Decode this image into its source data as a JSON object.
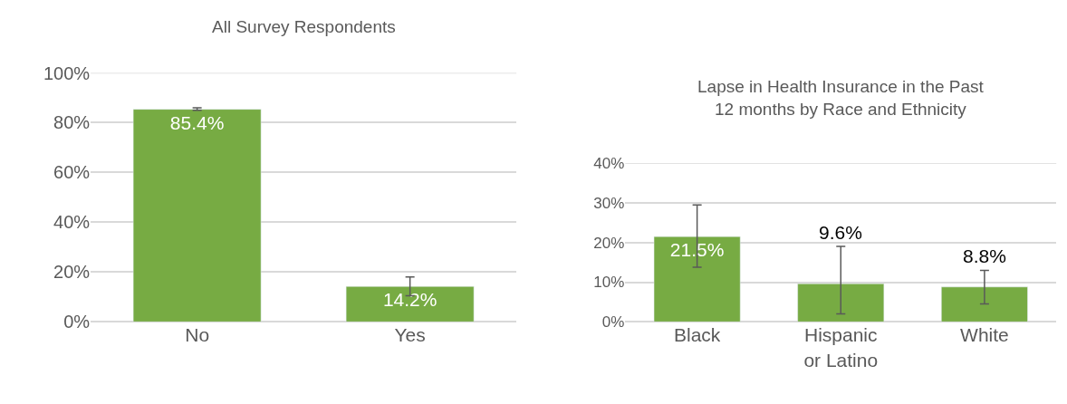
{
  "chart_data": [
    {
      "type": "bar",
      "title": "All Survey Respondents",
      "categories": [
        "No",
        "Yes"
      ],
      "values": [
        85.4,
        14.2
      ],
      "value_labels": [
        "85.4%",
        "14.2%"
      ],
      "errors": [
        [
          85,
          86
        ],
        [
          10.5,
          18
        ]
      ],
      "color": "#77ab43",
      "ylim": [
        0,
        100
      ],
      "yticks": [
        {
          "value": 0,
          "label": "0%"
        },
        {
          "value": 20,
          "label": "20%"
        },
        {
          "value": 40,
          "label": "40%"
        },
        {
          "value": 60,
          "label": "60%"
        },
        {
          "value": 80,
          "label": "80%"
        },
        {
          "value": 100,
          "label": "100%"
        }
      ],
      "grid": "y"
    },
    {
      "type": "bar",
      "title": "Lapse in Health Insurance in the Past 12 months by Race and Ethnicity",
      "categories": [
        "Black",
        "Hispanic or Latino",
        "White"
      ],
      "values": [
        21.5,
        9.6,
        8.8
      ],
      "value_labels": [
        "21.5%",
        "9.6%",
        "8.8%"
      ],
      "errors": [
        [
          13.8,
          29.5
        ],
        [
          2,
          19
        ],
        [
          4.5,
          13
        ]
      ],
      "color": "#77ab43",
      "ylim": [
        0,
        40
      ],
      "yticks": [
        {
          "value": 0,
          "label": "0%"
        },
        {
          "value": 10,
          "label": "10%"
        },
        {
          "value": 20,
          "label": "20%"
        },
        {
          "value": 30,
          "label": "30%"
        },
        {
          "value": 40,
          "label": "40%"
        }
      ],
      "grid": "y"
    }
  ]
}
